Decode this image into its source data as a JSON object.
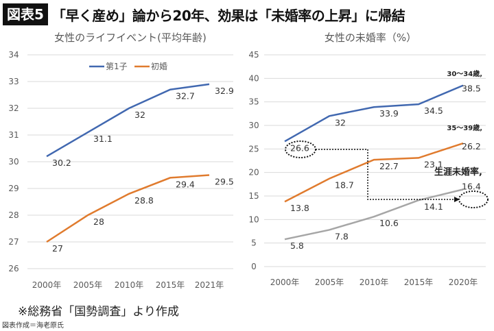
{
  "header": {
    "badge": "図表5",
    "headline": "「早く産め」論から20年、効果は「未婚率の上昇」に帰結"
  },
  "footer": {
    "source": "※総務省「国勢調査」より作成",
    "credit": "図表作成＝海老原氏"
  },
  "colors": {
    "blue": "#4168b0",
    "orange": "#e07b2e",
    "gray": "#a6a6a6",
    "grid": "#d9d9d9"
  },
  "chart_data": [
    {
      "type": "line",
      "title": "女性のライフイベント(平均年齢)",
      "categories": [
        "2000年",
        "2005年",
        "2010年",
        "2015年",
        "2021年"
      ],
      "ylim": [
        26,
        34
      ],
      "yticks": [
        26,
        27,
        28,
        29,
        30,
        31,
        32,
        33,
        34
      ],
      "grid": true,
      "legend": "top-center",
      "series": [
        {
          "name": "第1子",
          "color": "#4168b0",
          "values": [
            30.2,
            31.1,
            32,
            32.7,
            32.9
          ]
        },
        {
          "name": "初婚",
          "color": "#e07b2e",
          "values": [
            27,
            28,
            28.8,
            29.4,
            29.5
          ]
        }
      ]
    },
    {
      "type": "line",
      "title": "女性の未婚率（%）",
      "categories": [
        "2000年",
        "2005年",
        "2010年",
        "2015年",
        "2020年"
      ],
      "ylim": [
        0,
        45
      ],
      "yticks": [
        0,
        5,
        10,
        15,
        20,
        25,
        30,
        35,
        40,
        45
      ],
      "grid": true,
      "series": [
        {
          "name": "30～34歳,",
          "color": "#4168b0",
          "values": [
            26.6,
            32,
            33.9,
            34.5,
            38.5
          ]
        },
        {
          "name": "35～39歳,",
          "color": "#e07b2e",
          "values": [
            13.8,
            18.7,
            22.7,
            23.1,
            26.2
          ]
        },
        {
          "name": "生涯未婚率,",
          "color": "#a6a6a6",
          "values": [
            5.8,
            7.8,
            10.6,
            14.1,
            16.4
          ]
        }
      ]
    }
  ]
}
